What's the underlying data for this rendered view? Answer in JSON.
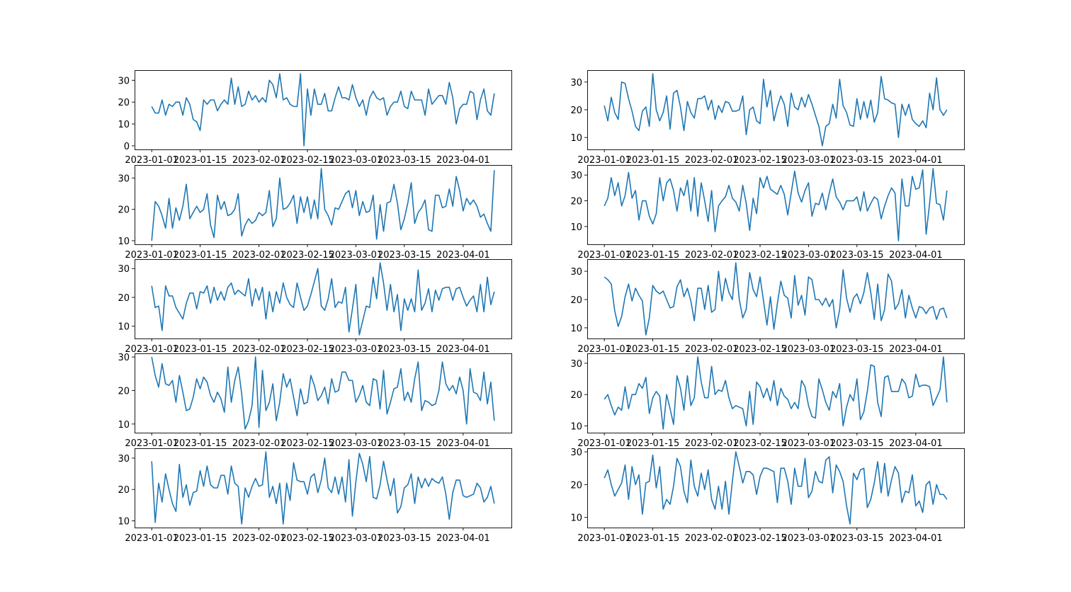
{
  "line_color": "#1f77b4",
  "chart_data": [
    {
      "type": "line",
      "x_start": "2023-01-01",
      "x_freq": "daily",
      "yticks": [
        0,
        10,
        20,
        30
      ],
      "xticks": [
        "2023-01-01",
        "2023-01-15",
        "2023-02-01",
        "2023-02-15",
        "2023-03-01",
        "2023-03-15",
        "2023-04-01"
      ],
      "values": [
        18,
        15,
        15,
        21,
        14,
        19,
        18,
        20,
        20,
        14,
        22,
        19,
        12,
        11,
        7,
        21,
        19,
        21,
        21,
        16,
        19,
        21,
        19,
        31,
        19,
        27,
        18,
        19,
        25,
        21,
        23,
        20,
        22,
        20,
        30,
        28,
        22,
        33,
        21,
        22,
        19,
        18,
        18,
        33,
        0,
        26,
        14,
        26,
        19,
        19,
        24,
        16,
        16,
        22,
        27,
        22,
        22,
        21,
        28,
        22,
        18,
        21,
        14,
        22,
        25,
        22,
        21,
        22,
        14,
        18,
        20,
        20,
        25,
        18,
        17,
        25,
        21,
        21,
        21,
        14,
        26,
        19,
        21,
        23,
        23,
        19,
        29,
        22,
        10,
        17,
        19,
        19,
        25,
        24,
        12,
        21,
        26,
        16,
        14,
        24
      ]
    },
    {
      "type": "line",
      "x_start": "2023-01-01",
      "x_freq": "daily",
      "yticks": [
        10,
        20,
        30
      ],
      "xticks": [
        "2023-01-01",
        "2023-01-15",
        "2023-02-01",
        "2023-02-15",
        "2023-03-01",
        "2023-03-15",
        "2023-04-01"
      ],
      "values": [
        21.5,
        16,
        24.5,
        19,
        16.5,
        30,
        29.5,
        24,
        19.5,
        14,
        12.5,
        19.5,
        21,
        14,
        33,
        20,
        16,
        19,
        25,
        13,
        26,
        27,
        21,
        12.5,
        23,
        19,
        17,
        24,
        24,
        25,
        20,
        23.5,
        16.5,
        21.5,
        19,
        23,
        22.5,
        19.5,
        19.5,
        20,
        25,
        11,
        20,
        21,
        16,
        15,
        31,
        21,
        27,
        16,
        21,
        25,
        22,
        14,
        26,
        21,
        20,
        24.5,
        21,
        25.5,
        22,
        18,
        14,
        7,
        14,
        15,
        22,
        17,
        31,
        21.5,
        19,
        14.5,
        14,
        24,
        16.5,
        23,
        17,
        23.5,
        15.5,
        19,
        32,
        24,
        23.5,
        22.5,
        22,
        10,
        22,
        18,
        22,
        16.5,
        15,
        14,
        16,
        13.5,
        26,
        20,
        31.5,
        20,
        18,
        20
      ]
    },
    {
      "type": "line",
      "x_start": "2023-01-01",
      "x_freq": "daily",
      "yticks": [
        10,
        20,
        30
      ],
      "xticks": [
        "2023-01-01",
        "2023-01-15",
        "2023-02-01",
        "2023-02-15",
        "2023-03-01",
        "2023-03-15",
        "2023-04-01"
      ],
      "values": [
        10,
        22.5,
        21,
        18,
        14,
        23.5,
        14,
        20.5,
        16.5,
        21,
        28,
        17,
        19,
        21,
        19,
        20,
        25,
        15,
        11,
        24.5,
        20,
        22.5,
        18,
        18.5,
        20,
        25,
        11.5,
        15,
        17,
        15.5,
        16.5,
        19,
        18,
        19,
        26,
        14.5,
        17,
        30,
        20,
        20.5,
        22,
        24.5,
        15.5,
        24,
        19,
        24,
        17,
        23,
        17,
        33,
        20,
        18,
        15,
        20.5,
        20,
        22.5,
        25,
        26,
        20.5,
        26,
        18,
        22.5,
        19,
        19.5,
        24.5,
        10.5,
        21.5,
        13,
        22,
        22.5,
        28,
        22,
        13.5,
        17,
        22,
        28.5,
        15.5,
        19,
        20.5,
        23,
        13.5,
        13,
        24.5,
        24.5,
        20.5,
        21,
        26.5,
        21,
        30.5,
        26,
        19.5,
        23.5,
        21.5,
        23,
        21,
        17.5,
        18.5,
        15.5,
        13,
        32.5
      ]
    },
    {
      "type": "line",
      "x_start": "2023-01-01",
      "x_freq": "daily",
      "yticks": [
        10,
        20,
        30
      ],
      "xticks": [
        "2023-01-01",
        "2023-01-15",
        "2023-02-01",
        "2023-02-15",
        "2023-03-01",
        "2023-03-15",
        "2023-04-01"
      ],
      "values": [
        18,
        21,
        29,
        22,
        27,
        18,
        22,
        31,
        21,
        24,
        12.5,
        20,
        20,
        14,
        11,
        15,
        29,
        20,
        27,
        28.5,
        24,
        16,
        25,
        22,
        28,
        16,
        29,
        14,
        27,
        20,
        12,
        24,
        8,
        18,
        20,
        21.5,
        26,
        21,
        19.5,
        16,
        26,
        19,
        8.5,
        21,
        15,
        29,
        25,
        29.5,
        24.5,
        23.5,
        22.5,
        26,
        22.5,
        14.5,
        23,
        31.5,
        23,
        19.5,
        24,
        27,
        14,
        19,
        18.5,
        23,
        16.5,
        23,
        28.5,
        21.5,
        19.5,
        16.5,
        20,
        20,
        20,
        21.5,
        16,
        23.5,
        16,
        19,
        21.5,
        20.5,
        13,
        18,
        22,
        25,
        23,
        4.5,
        28.5,
        18,
        18,
        29.5,
        24.5,
        25,
        32,
        7,
        19,
        32.5,
        19,
        18.5,
        12.5,
        24
      ]
    },
    {
      "type": "line",
      "x_start": "2023-01-01",
      "x_freq": "daily",
      "yticks": [
        10,
        20,
        30
      ],
      "xticks": [
        "2023-01-01",
        "2023-01-15",
        "2023-02-01",
        "2023-02-15",
        "2023-03-01",
        "2023-03-15",
        "2023-04-01"
      ],
      "values": [
        24,
        16.5,
        17,
        8.5,
        24,
        20.5,
        20.5,
        16.5,
        14.5,
        12.5,
        18,
        21.5,
        21.5,
        16,
        22,
        21.5,
        24,
        18,
        23.5,
        19,
        22,
        19,
        23.5,
        25,
        21,
        22.5,
        21.5,
        20.5,
        26.5,
        17,
        23,
        19,
        23.5,
        12.5,
        22,
        15,
        22,
        18,
        25,
        20,
        17.5,
        16.5,
        25,
        20,
        15.5,
        17,
        21,
        25.5,
        30,
        17,
        15.5,
        19.5,
        26.5,
        16.5,
        18.5,
        18,
        23.5,
        8,
        16,
        24.5,
        7,
        12,
        17,
        16.5,
        27,
        19.5,
        32,
        25,
        15.5,
        24.5,
        15,
        21,
        8.5,
        19.5,
        15.5,
        19.5,
        15,
        29.5,
        15.5,
        18,
        23,
        15,
        22.5,
        19,
        23,
        23.5,
        23.5,
        19,
        23,
        23.5,
        20,
        17,
        19,
        20.5,
        15,
        24.5,
        15,
        27,
        17.5,
        22
      ]
    },
    {
      "type": "line",
      "x_start": "2023-01-01",
      "x_freq": "daily",
      "yticks": [
        10,
        20,
        30
      ],
      "xticks": [
        "2023-01-01",
        "2023-01-15",
        "2023-02-01",
        "2023-02-15",
        "2023-03-01",
        "2023-03-15",
        "2023-04-01"
      ],
      "values": [
        28,
        27,
        25.5,
        16,
        10.5,
        14,
        21,
        25.5,
        19.5,
        24,
        21.5,
        19.5,
        7.5,
        13.5,
        25,
        23,
        22,
        23,
        20,
        17,
        17.5,
        24.5,
        27,
        21,
        24,
        19.5,
        12.5,
        24,
        24,
        16.5,
        25,
        15.5,
        16.5,
        30,
        19.5,
        27.5,
        22.5,
        20,
        33,
        20,
        13.5,
        16.5,
        29.5,
        23.5,
        21,
        28,
        19.5,
        11,
        21,
        9.5,
        18.5,
        26.5,
        21.5,
        20.5,
        13.5,
        28.5,
        18,
        21.5,
        14.5,
        28,
        27,
        20,
        20,
        18,
        20.5,
        17.5,
        20,
        10,
        16.5,
        30.5,
        20.5,
        15.5,
        20.5,
        22,
        18.5,
        22.5,
        29.5,
        22.5,
        13,
        25.5,
        12.5,
        16.5,
        29,
        26.5,
        16.5,
        18.5,
        23.5,
        13.5,
        21.5,
        17,
        13.5,
        17.5,
        17,
        15,
        17,
        17.5,
        13,
        16.5,
        17,
        13.5
      ]
    },
    {
      "type": "line",
      "x_start": "2023-01-01",
      "x_freq": "daily",
      "yticks": [
        10,
        20,
        30
      ],
      "xticks": [
        "2023-01-01",
        "2023-01-15",
        "2023-02-01",
        "2023-02-15",
        "2023-03-01",
        "2023-03-15",
        "2023-04-01"
      ],
      "values": [
        30,
        24.5,
        21,
        28,
        22,
        21.5,
        23,
        16.5,
        24.5,
        19.5,
        14,
        14.5,
        18,
        23.5,
        20.5,
        24,
        22.5,
        18.5,
        16.5,
        19.5,
        17.5,
        13.5,
        27,
        16.5,
        23,
        27,
        19,
        8.5,
        11,
        15.5,
        30,
        9,
        26,
        14,
        16.5,
        22,
        11,
        16.5,
        25,
        21,
        23.5,
        18,
        12.5,
        20.5,
        16,
        16.5,
        24.5,
        21.5,
        17,
        18.5,
        21,
        16,
        23.5,
        19.5,
        20,
        25.5,
        25.5,
        23,
        23,
        16.5,
        18.5,
        21.5,
        16.5,
        15.5,
        23.5,
        23,
        14.5,
        26,
        13,
        16.5,
        20.5,
        21,
        26.5,
        17,
        19.5,
        16.5,
        23.5,
        28.5,
        14,
        17,
        16.5,
        15.5,
        16,
        20,
        28.5,
        22,
        20,
        21.5,
        19,
        24,
        20,
        10,
        26.5,
        19.5,
        19,
        17,
        25.5,
        16,
        22.5,
        11
      ]
    },
    {
      "type": "line",
      "x_start": "2023-01-01",
      "x_freq": "daily",
      "yticks": [
        10,
        20,
        30
      ],
      "xticks": [
        "2023-01-01",
        "2023-01-15",
        "2023-02-01",
        "2023-02-15",
        "2023-03-01",
        "2023-03-15",
        "2023-04-01"
      ],
      "values": [
        18.5,
        20,
        16.5,
        13.5,
        16,
        15,
        22.5,
        15.5,
        20,
        20,
        23.5,
        22,
        25.5,
        14,
        19,
        21,
        19.5,
        9,
        20,
        15.5,
        10.5,
        26,
        22,
        15,
        26,
        16.5,
        19,
        32,
        24,
        19,
        19,
        29,
        20,
        21.5,
        21,
        24.5,
        19,
        15.5,
        16.5,
        16,
        15.5,
        10,
        21,
        10.5,
        24,
        22.5,
        19,
        22,
        18,
        24.5,
        16.5,
        22,
        19.5,
        18.5,
        15.5,
        17.5,
        15.5,
        24.5,
        22.5,
        16.5,
        13,
        12.5,
        25,
        21.5,
        17.5,
        15,
        21,
        19,
        23.5,
        10,
        16,
        20,
        18,
        25,
        12,
        14.5,
        21,
        29.5,
        29,
        17.5,
        13,
        25.5,
        26,
        21,
        21,
        21,
        25,
        23.5,
        19,
        19.5,
        26.5,
        22.5,
        23,
        23,
        22.5,
        16.5,
        19,
        21.5,
        32,
        17.5
      ]
    },
    {
      "type": "line",
      "x_start": "2023-01-01",
      "x_freq": "daily",
      "yticks": [
        10,
        20,
        30
      ],
      "xticks": [
        "2023-01-01",
        "2023-01-15",
        "2023-02-01",
        "2023-02-15",
        "2023-03-01",
        "2023-03-15",
        "2023-04-01"
      ],
      "values": [
        29,
        9.5,
        22,
        16,
        25,
        20,
        15.5,
        13,
        28,
        17.5,
        21.5,
        15,
        19,
        19.5,
        26,
        21,
        27.5,
        21.5,
        20.5,
        20.5,
        24.5,
        24.5,
        18.5,
        27.5,
        22,
        21,
        9,
        20.5,
        17.5,
        21,
        23.5,
        21,
        21.5,
        32,
        17.5,
        21,
        15.5,
        22,
        9,
        22,
        16.5,
        28.5,
        23,
        22.5,
        22.5,
        18.5,
        24,
        25,
        19,
        23,
        30,
        20.5,
        19,
        24,
        18.5,
        24,
        16,
        29.5,
        11.5,
        22.5,
        31.5,
        28,
        22.5,
        30.5,
        17.5,
        17,
        21.5,
        29,
        23,
        18,
        23.5,
        12.5,
        14.5,
        20.5,
        21.5,
        25,
        15.5,
        24,
        20.5,
        23.5,
        21,
        23.5,
        22.5,
        22,
        24,
        18.5,
        10.5,
        19,
        23,
        23,
        18,
        17.5,
        18,
        18.5,
        22,
        20.5,
        16,
        17.5,
        21,
        15.5
      ]
    },
    {
      "type": "line",
      "x_start": "2023-01-01",
      "x_freq": "daily",
      "yticks": [
        10,
        20,
        30
      ],
      "xticks": [
        "2023-01-01",
        "2023-01-15",
        "2023-02-01",
        "2023-02-15",
        "2023-03-01",
        "2023-03-15",
        "2023-04-01"
      ],
      "values": [
        22,
        24.5,
        20,
        16.5,
        18.5,
        20.5,
        26,
        15.5,
        25.5,
        20,
        23,
        11,
        20.5,
        21,
        29,
        19,
        25.5,
        12.5,
        15.5,
        14,
        19.5,
        28,
        25.5,
        18,
        14.5,
        27.5,
        19.5,
        16.5,
        23.5,
        18.5,
        24.5,
        15.5,
        12.5,
        19.5,
        12.5,
        21,
        11,
        21,
        30,
        25.5,
        20.5,
        24,
        24,
        23,
        17,
        22.5,
        25,
        25,
        24.5,
        24,
        14.5,
        25,
        25,
        21,
        14,
        25,
        19.5,
        19.5,
        28,
        16,
        18,
        24,
        21,
        20.5,
        27.5,
        28.5,
        17.5,
        26,
        24,
        21,
        13.5,
        8,
        23.5,
        21.5,
        24.5,
        25,
        13,
        15.5,
        20.5,
        27,
        17.5,
        26.5,
        16.5,
        21.5,
        25.5,
        23.5,
        14.5,
        18,
        17.5,
        23,
        13.5,
        15,
        11.5,
        20,
        21,
        14,
        20,
        17,
        17,
        15.5
      ]
    }
  ]
}
